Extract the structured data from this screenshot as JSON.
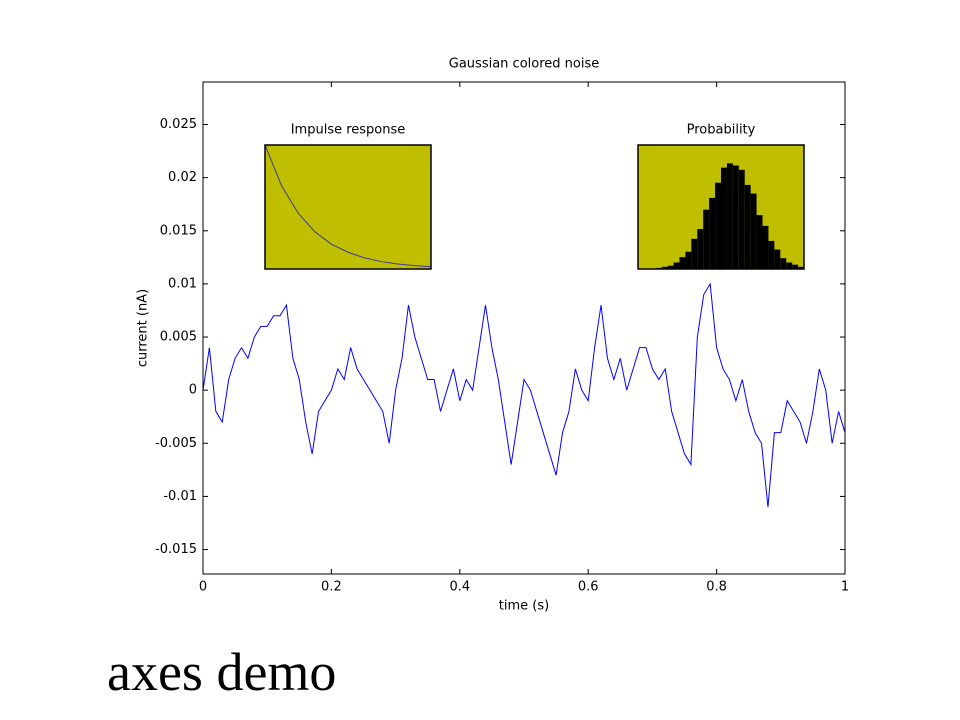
{
  "chart_data": [
    {
      "type": "line",
      "title": "Gaussian colored noise",
      "xlabel": "time (s)",
      "ylabel": "current (nA)",
      "color": "#0000ff",
      "x": [
        0,
        0.01,
        0.02,
        0.03,
        0.04,
        0.05,
        0.06,
        0.07,
        0.08,
        0.09,
        0.1,
        0.11,
        0.12,
        0.13,
        0.14,
        0.15,
        0.16,
        0.17,
        0.18,
        0.19,
        0.2,
        0.21,
        0.22,
        0.23,
        0.24,
        0.25,
        0.26,
        0.27,
        0.28,
        0.29,
        0.3,
        0.31,
        0.32,
        0.33,
        0.34,
        0.35,
        0.36,
        0.37,
        0.38,
        0.39,
        0.4,
        0.41,
        0.42,
        0.43,
        0.44,
        0.45,
        0.46,
        0.47,
        0.48,
        0.49,
        0.5,
        0.51,
        0.52,
        0.53,
        0.54,
        0.55,
        0.56,
        0.57,
        0.58,
        0.59,
        0.6,
        0.61,
        0.62,
        0.63,
        0.64,
        0.65,
        0.66,
        0.67,
        0.68,
        0.69,
        0.7,
        0.71,
        0.72,
        0.73,
        0.74,
        0.75,
        0.76,
        0.77,
        0.78,
        0.79,
        0.8,
        0.81,
        0.82,
        0.83,
        0.84,
        0.85,
        0.86,
        0.87,
        0.88,
        0.89,
        0.9,
        0.91,
        0.92,
        0.93,
        0.94,
        0.95,
        0.96,
        0.97,
        0.98,
        0.99,
        1
      ],
      "values": [
        0,
        0.004,
        -0.002,
        -0.003,
        0.001,
        0.003,
        0.004,
        0.003,
        0.005,
        0.006,
        0.006,
        0.007,
        0.007,
        0.008,
        0.003,
        0.001,
        -0.003,
        -0.006,
        -0.002,
        -0.001,
        0,
        0.002,
        0.001,
        0.004,
        0.002,
        0.001,
        0,
        -0.001,
        -0.002,
        -0.005,
        0,
        0.003,
        0.008,
        0.005,
        0.003,
        0.001,
        0.001,
        -0.002,
        0,
        0.002,
        -0.001,
        0.001,
        0,
        0.004,
        0.008,
        0.004,
        0.001,
        -0.003,
        -0.007,
        -0.003,
        0.001,
        0,
        -0.002,
        -0.004,
        -0.006,
        -0.008,
        -0.004,
        -0.002,
        0.002,
        0,
        -0.001,
        0.004,
        0.008,
        0.003,
        0.001,
        0.003,
        0,
        0.002,
        0.004,
        0.004,
        0.002,
        0.001,
        0.002,
        -0.002,
        -0.004,
        -0.006,
        -0.007,
        0.005,
        0.009,
        0.01,
        0.004,
        0.002,
        0.001,
        -0.001,
        0.001,
        -0.002,
        -0.004,
        -0.005,
        -0.011,
        -0.004,
        -0.004,
        -0.001,
        -0.002,
        -0.003,
        -0.005,
        -0.002,
        0.002,
        0,
        -0.005,
        -0.002,
        -0.004
      ],
      "xlim": [
        0,
        1
      ],
      "ylim": [
        -0.0173,
        0.029
      ],
      "xticks": [
        0,
        0.2,
        0.4,
        0.6,
        0.8,
        1
      ],
      "yticks": [
        -0.015,
        -0.01,
        -0.005,
        0,
        0.005,
        0.01,
        0.015,
        0.02,
        0.025
      ]
    },
    {
      "type": "line",
      "title": "Impulse response",
      "color": "#3b3b8f",
      "background": "#bfbf00",
      "x": [
        0,
        0.02,
        0.04,
        0.06,
        0.08,
        0.1,
        0.12,
        0.14,
        0.16,
        0.18,
        0.2
      ],
      "values": [
        1,
        0.67,
        0.45,
        0.3,
        0.2,
        0.135,
        0.09,
        0.06,
        0.04,
        0.027,
        0.018
      ],
      "xlim": [
        0,
        0.2
      ],
      "ylim": [
        0,
        1
      ]
    },
    {
      "type": "histogram",
      "title": "Probability",
      "color": "#000000",
      "background": "#bfbf00",
      "bins": [
        -0.013,
        -0.012,
        -0.011,
        -0.01,
        -0.009,
        -0.008,
        -0.007,
        -0.006,
        -0.005,
        -0.004,
        -0.003,
        -0.002,
        -0.001,
        0,
        0.001,
        0.002,
        0.003,
        0.004,
        0.005,
        0.006,
        0.007,
        0.008,
        0.009,
        0.01,
        0.011,
        0.012
      ],
      "values": [
        1,
        2,
        3,
        6,
        11,
        16,
        28,
        37,
        55,
        66,
        80,
        94,
        98,
        96,
        92,
        78,
        70,
        50,
        40,
        26,
        18,
        10,
        6,
        4,
        2
      ],
      "xlim": [
        -0.016,
        0.012
      ],
      "ylim": [
        0,
        115
      ]
    }
  ],
  "caption": "axes demo"
}
